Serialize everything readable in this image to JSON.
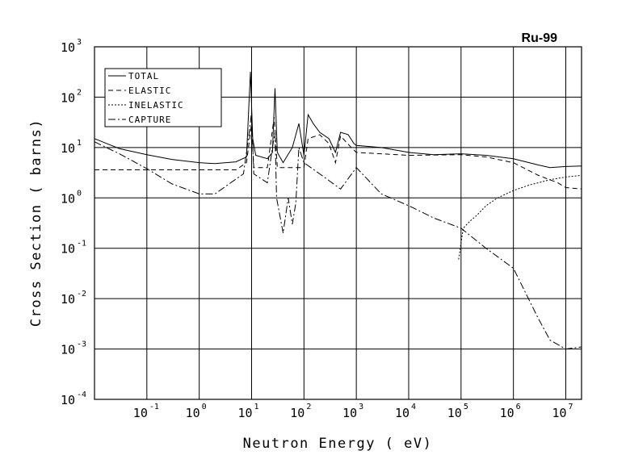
{
  "chart_data": {
    "type": "line",
    "title": "Ru-99",
    "xlabel": "Neutron Energy ( eV)",
    "ylabel": "Cross Section ( barns)",
    "x_scale": "log",
    "y_scale": "log",
    "xlim": [
      0.01,
      20000000
    ],
    "ylim": [
      0.0001,
      1000
    ],
    "grid": true,
    "legend_position": "top-left",
    "x_ticks": [
      {
        "base": "10",
        "exp": "-1",
        "value": 0.1
      },
      {
        "base": "10",
        "exp": "0",
        "value": 1
      },
      {
        "base": "10",
        "exp": "1",
        "value": 10
      },
      {
        "base": "10",
        "exp": "2",
        "value": 100
      },
      {
        "base": "10",
        "exp": "3",
        "value": 1000
      },
      {
        "base": "10",
        "exp": "4",
        "value": 10000
      },
      {
        "base": "10",
        "exp": "5",
        "value": 100000
      },
      {
        "base": "10",
        "exp": "6",
        "value": 1000000
      },
      {
        "base": "10",
        "exp": "7",
        "value": 10000000
      }
    ],
    "y_ticks": [
      {
        "base": "10",
        "exp": "3",
        "value": 1000
      },
      {
        "base": "10",
        "exp": "2",
        "value": 100
      },
      {
        "base": "10",
        "exp": "1",
        "value": 10
      },
      {
        "base": "10",
        "exp": "0",
        "value": 1
      },
      {
        "base": "10",
        "exp": "-1",
        "value": 0.1
      },
      {
        "base": "10",
        "exp": "-2",
        "value": 0.01
      },
      {
        "base": "10",
        "exp": "-3",
        "value": 0.001
      },
      {
        "base": "10",
        "exp": "-4",
        "value": 0.0001
      }
    ],
    "series": [
      {
        "name": "TOTAL",
        "dash": "",
        "step": false,
        "points": [
          [
            0.01,
            15
          ],
          [
            0.03,
            9.5
          ],
          [
            0.1,
            7.2
          ],
          [
            0.3,
            5.8
          ],
          [
            1,
            5.0
          ],
          [
            2,
            4.8
          ],
          [
            5,
            5.2
          ],
          [
            8,
            6.5
          ],
          [
            9.5,
            320
          ],
          [
            10.5,
            15
          ],
          [
            12,
            7
          ],
          [
            20,
            6
          ],
          [
            25,
            8
          ],
          [
            28,
            150
          ],
          [
            31,
            8
          ],
          [
            40,
            5
          ],
          [
            60,
            10
          ],
          [
            80,
            30
          ],
          [
            100,
            7
          ],
          [
            120,
            45
          ],
          [
            150,
            30
          ],
          [
            200,
            20
          ],
          [
            300,
            15
          ],
          [
            400,
            8
          ],
          [
            500,
            20
          ],
          [
            700,
            18
          ],
          [
            900,
            12
          ],
          [
            1000,
            11
          ],
          [
            3000,
            10
          ],
          [
            10000,
            8
          ],
          [
            30000,
            7.2
          ],
          [
            100000,
            7.5
          ],
          [
            300000,
            7.0
          ],
          [
            1000000,
            6.0
          ],
          [
            3000000,
            4.5
          ],
          [
            5000000,
            4.0
          ],
          [
            10000000,
            4.2
          ],
          [
            20000000,
            4.3
          ]
        ]
      },
      {
        "name": "ELASTIC",
        "dash": "6,4",
        "step": false,
        "points": [
          [
            0.01,
            3.6
          ],
          [
            0.1,
            3.6
          ],
          [
            1,
            3.6
          ],
          [
            5,
            3.6
          ],
          [
            8,
            5
          ],
          [
            10,
            30
          ],
          [
            11,
            4
          ],
          [
            20,
            4
          ],
          [
            27,
            40
          ],
          [
            31,
            4
          ],
          [
            60,
            4
          ],
          [
            100,
            4
          ],
          [
            120,
            15
          ],
          [
            200,
            18
          ],
          [
            300,
            12
          ],
          [
            400,
            5
          ],
          [
            500,
            17
          ],
          [
            800,
            10
          ],
          [
            1000,
            8
          ],
          [
            3000,
            7.5
          ],
          [
            10000,
            7
          ],
          [
            100000,
            7.2
          ],
          [
            300000,
            6.5
          ],
          [
            1000000,
            5.0
          ],
          [
            3000000,
            2.8
          ],
          [
            7000000,
            2.0
          ],
          [
            10000000,
            1.6
          ],
          [
            20000000,
            1.5
          ]
        ]
      },
      {
        "name": "INELASTIC",
        "dash": "2,2",
        "step": false,
        "points": [
          [
            90000,
            0.06
          ],
          [
            110000,
            0.25
          ],
          [
            150000,
            0.35
          ],
          [
            200000,
            0.45
          ],
          [
            300000,
            0.7
          ],
          [
            500000,
            1.0
          ],
          [
            1000000,
            1.4
          ],
          [
            2000000,
            1.8
          ],
          [
            5000000,
            2.3
          ],
          [
            10000000,
            2.6
          ],
          [
            20000000,
            2.8
          ]
        ]
      },
      {
        "name": "CAPTURE",
        "dash": "9,3,2,3",
        "step": false,
        "points": [
          [
            0.01,
            13
          ],
          [
            0.03,
            7.5
          ],
          [
            0.1,
            3.8
          ],
          [
            0.3,
            1.9
          ],
          [
            1,
            1.2
          ],
          [
            2,
            1.2
          ],
          [
            4,
            2
          ],
          [
            7,
            3
          ],
          [
            9,
            20
          ],
          [
            10,
            50
          ],
          [
            11,
            3
          ],
          [
            20,
            2
          ],
          [
            25,
            10
          ],
          [
            28,
            20
          ],
          [
            30,
            1
          ],
          [
            40,
            0.2
          ],
          [
            50,
            1
          ],
          [
            60,
            0.3
          ],
          [
            70,
            0.8
          ],
          [
            80,
            10
          ],
          [
            100,
            5
          ],
          [
            200,
            3
          ],
          [
            500,
            1.5
          ],
          [
            1000,
            4
          ],
          [
            3000,
            1.2
          ],
          [
            10000,
            0.7
          ],
          [
            30000,
            0.4
          ],
          [
            100000,
            0.25
          ],
          [
            300000,
            0.1
          ],
          [
            1000000,
            0.04
          ],
          [
            3000000,
            0.004
          ],
          [
            5000000,
            0.0015
          ],
          [
            10000000,
            0.001
          ],
          [
            20000000,
            0.0011
          ]
        ]
      }
    ]
  }
}
